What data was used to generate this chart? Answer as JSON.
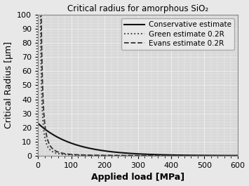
{
  "title": "Critical radius for amorphous SiO₂",
  "xlabel": "Applied load [MPa]",
  "ylabel": "Critical Radius [µm]",
  "xlim": [
    0,
    600
  ],
  "ylim": [
    0,
    100
  ],
  "xticks": [
    0,
    100,
    200,
    300,
    400,
    500,
    600
  ],
  "yticks": [
    0,
    10,
    20,
    30,
    40,
    50,
    60,
    70,
    80,
    90,
    100
  ],
  "background_color": "#d8d8d8",
  "outer_background": "#e8e8e8",
  "grid_color": "#bbbbbb",
  "legend": [
    {
      "label": "Green estimate 0.2R",
      "linestyle": "dotted",
      "color": "#333333",
      "linewidth": 1.3
    },
    {
      "label": "Evans estimate 0.2R",
      "linestyle": "dashed",
      "color": "#333333",
      "linewidth": 1.3
    },
    {
      "label": "Conservative estimate",
      "linestyle": "solid",
      "color": "#111111",
      "linewidth": 1.5
    }
  ],
  "curves": {
    "green_K": 5500,
    "green_n": 2.0,
    "green_x0": 0,
    "evans_K": 9500,
    "evans_n": 2.0,
    "evans_x0": 0,
    "cons_A": 23.0,
    "cons_b": 0.0095
  },
  "title_fontsize": 8.5,
  "axis_label_fontsize": 9,
  "tick_fontsize": 8,
  "legend_fontsize": 7.5
}
